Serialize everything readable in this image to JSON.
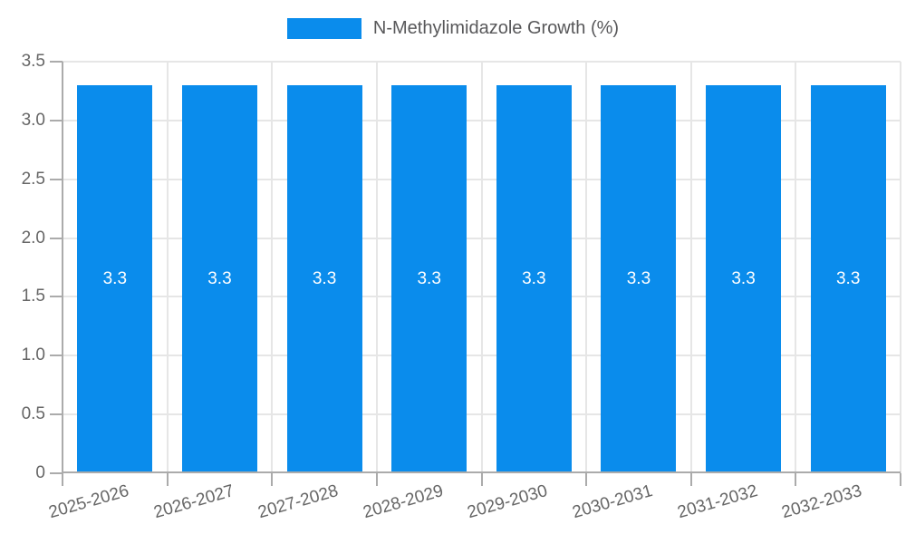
{
  "chart_data": {
    "type": "bar",
    "title": "",
    "legend_label": "N-Methylimidazole Growth (%)",
    "legend_position": "top",
    "categories": [
      "2025-2026",
      "2026-2027",
      "2027-2028",
      "2028-2029",
      "2029-2030",
      "2030-2031",
      "2031-2032",
      "2032-2033"
    ],
    "values": [
      3.3,
      3.3,
      3.3,
      3.3,
      3.3,
      3.3,
      3.3,
      3.3
    ],
    "value_labels": [
      "3.3",
      "3.3",
      "3.3",
      "3.3",
      "3.3",
      "3.3",
      "3.3",
      "3.3"
    ],
    "xlabel": "",
    "ylabel": "",
    "ylim": [
      0,
      3.5
    ],
    "yticks": [
      0,
      0.5,
      1,
      1.5,
      2,
      2.5,
      3,
      3.5
    ],
    "ytick_labels": [
      "0",
      "0.5",
      "1.0",
      "1.5",
      "2.0",
      "2.5",
      "3.0",
      "3.5"
    ],
    "grid": true,
    "x_label_rotation_deg": -16
  },
  "colors": {
    "bar": "#0a8cec",
    "grid": "#e6e6e6",
    "axis": "#ababab",
    "tick_text": "#666666",
    "legend_text": "#58585a",
    "value_text": "#ffffff",
    "background": "#ffffff"
  }
}
